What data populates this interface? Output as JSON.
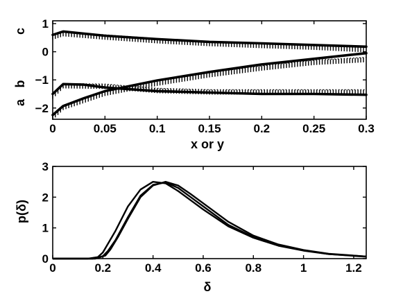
{
  "chart_data": [
    {
      "type": "line",
      "title": "",
      "xlabel": "x or y",
      "ylabel": "",
      "y_side_labels": [
        "a",
        "b",
        "c"
      ],
      "xlim": [
        0,
        0.3
      ],
      "ylim": [
        -2.4,
        1.1
      ],
      "xticks": [
        0,
        0.05,
        0.1,
        0.15,
        0.2,
        0.25,
        0.3
      ],
      "xtick_labels": [
        "0",
        "0.05",
        "0.1",
        "0.15",
        "0.2",
        "0.25",
        "0.3"
      ],
      "yticks": [
        -2,
        -1,
        0,
        1
      ],
      "ytick_labels": [
        "−2",
        "−1",
        "0",
        "1"
      ],
      "grid": false,
      "series": [
        {
          "style": "solid",
          "x": [
            0,
            0.01,
            0.05,
            0.1,
            0.15,
            0.2,
            0.25,
            0.3
          ],
          "y": [
            0.6,
            0.72,
            0.57,
            0.45,
            0.35,
            0.3,
            0.24,
            0.18
          ]
        },
        {
          "style": "dotted",
          "x": [
            0,
            0.01,
            0.05,
            0.1,
            0.15,
            0.2,
            0.25,
            0.3
          ],
          "y": [
            0.6,
            0.72,
            0.6,
            0.47,
            0.37,
            0.3,
            0.24,
            0.15
          ]
        },
        {
          "style": "solid",
          "x": [
            0,
            0.01,
            0.03,
            0.05,
            0.1,
            0.15,
            0.2,
            0.25,
            0.3
          ],
          "y": [
            -1.5,
            -1.15,
            -1.17,
            -1.27,
            -1.4,
            -1.45,
            -1.5,
            -1.5,
            -1.53
          ]
        },
        {
          "style": "dotted",
          "x": [
            0,
            0.01,
            0.05,
            0.1,
            0.15,
            0.2,
            0.25,
            0.3
          ],
          "y": [
            -1.5,
            -1.13,
            -1.15,
            -1.3,
            -1.35,
            -1.35,
            -1.35,
            -1.35
          ]
        },
        {
          "style": "solid",
          "x": [
            0,
            0.01,
            0.03,
            0.05,
            0.1,
            0.15,
            0.2,
            0.25,
            0.3
          ],
          "y": [
            -2.25,
            -1.93,
            -1.65,
            -1.4,
            -1.02,
            -0.72,
            -0.45,
            -0.25,
            -0.05
          ]
        },
        {
          "style": "dotted",
          "x": [
            0,
            0.01,
            0.05,
            0.1,
            0.15,
            0.2,
            0.25,
            0.3
          ],
          "y": [
            -2.25,
            -1.9,
            -1.4,
            -1.04,
            -0.74,
            -0.5,
            -0.3,
            -0.2
          ]
        }
      ]
    },
    {
      "type": "line",
      "title": "",
      "xlabel": "δ",
      "ylabel": "p(δ)",
      "xlim": [
        0,
        1.25
      ],
      "ylim": [
        0,
        3
      ],
      "xticks": [
        0,
        0.2,
        0.4,
        0.6,
        0.8,
        1,
        1.2
      ],
      "xtick_labels": [
        "0",
        "0.2",
        "0.4",
        "0.6",
        "0.8",
        "1",
        "1.2"
      ],
      "yticks": [
        0,
        1,
        2,
        3
      ],
      "ytick_labels": [
        "0",
        "1",
        "2",
        "3"
      ],
      "grid": false,
      "series": [
        {
          "x": [
            0,
            0.14,
            0.18,
            0.2,
            0.25,
            0.3,
            0.35,
            0.4,
            0.45,
            0.5,
            0.55,
            0.6,
            0.7,
            0.8,
            0.9,
            1.0,
            1.1,
            1.25
          ],
          "y": [
            0,
            0,
            0.05,
            0.2,
            0.9,
            1.7,
            2.25,
            2.5,
            2.45,
            2.2,
            1.9,
            1.6,
            1.05,
            0.68,
            0.42,
            0.26,
            0.15,
            0.07
          ]
        },
        {
          "x": [
            0,
            0.16,
            0.2,
            0.22,
            0.25,
            0.3,
            0.35,
            0.4,
            0.45,
            0.5,
            0.55,
            0.6,
            0.7,
            0.8,
            0.9,
            1.0,
            1.1,
            1.25
          ],
          "y": [
            0,
            0,
            0.08,
            0.25,
            0.6,
            1.35,
            2.05,
            2.4,
            2.48,
            2.3,
            2.0,
            1.7,
            1.1,
            0.7,
            0.44,
            0.27,
            0.15,
            0.06
          ]
        },
        {
          "x": [
            0,
            0.17,
            0.21,
            0.23,
            0.26,
            0.3,
            0.35,
            0.4,
            0.45,
            0.5,
            0.55,
            0.6,
            0.7,
            0.8,
            0.9,
            1.0,
            1.1,
            1.25
          ],
          "y": [
            0,
            0,
            0.1,
            0.3,
            0.7,
            1.3,
            2.0,
            2.38,
            2.5,
            2.38,
            2.1,
            1.8,
            1.2,
            0.75,
            0.46,
            0.28,
            0.16,
            0.07
          ]
        }
      ]
    }
  ]
}
